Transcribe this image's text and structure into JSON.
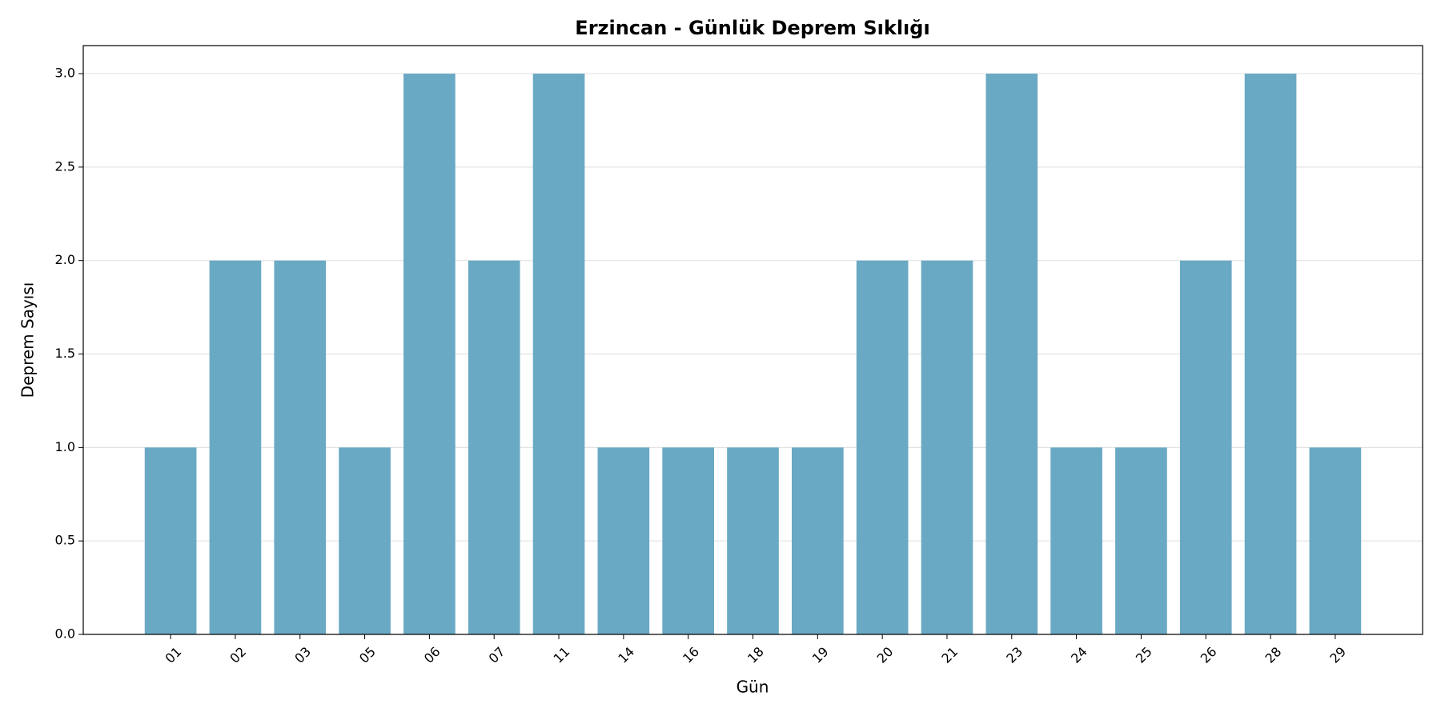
{
  "chart_data": {
    "type": "bar",
    "title": "Erzincan - Günlük Deprem Sıklığı",
    "xlabel": "Gün",
    "ylabel": "Deprem Sayısı",
    "categories": [
      "01",
      "02",
      "03",
      "05",
      "06",
      "07",
      "11",
      "14",
      "16",
      "18",
      "19",
      "20",
      "21",
      "23",
      "24",
      "25",
      "26",
      "28",
      "29"
    ],
    "values": [
      1,
      2,
      2,
      1,
      3,
      2,
      3,
      1,
      1,
      1,
      1,
      2,
      2,
      3,
      1,
      1,
      2,
      3,
      1
    ],
    "color": "#6aa9c4",
    "ylim": [
      0,
      3.15
    ],
    "yticks": [
      {
        "value": 0,
        "label": "0.0"
      },
      {
        "value": 0.5,
        "label": "0.5"
      },
      {
        "value": 1,
        "label": "1.0"
      },
      {
        "value": 1.5,
        "label": "1.5"
      },
      {
        "value": 2,
        "label": "2.0"
      },
      {
        "value": 2.5,
        "label": "2.5"
      },
      {
        "value": 3,
        "label": "3.0"
      }
    ],
    "grid": true
  }
}
